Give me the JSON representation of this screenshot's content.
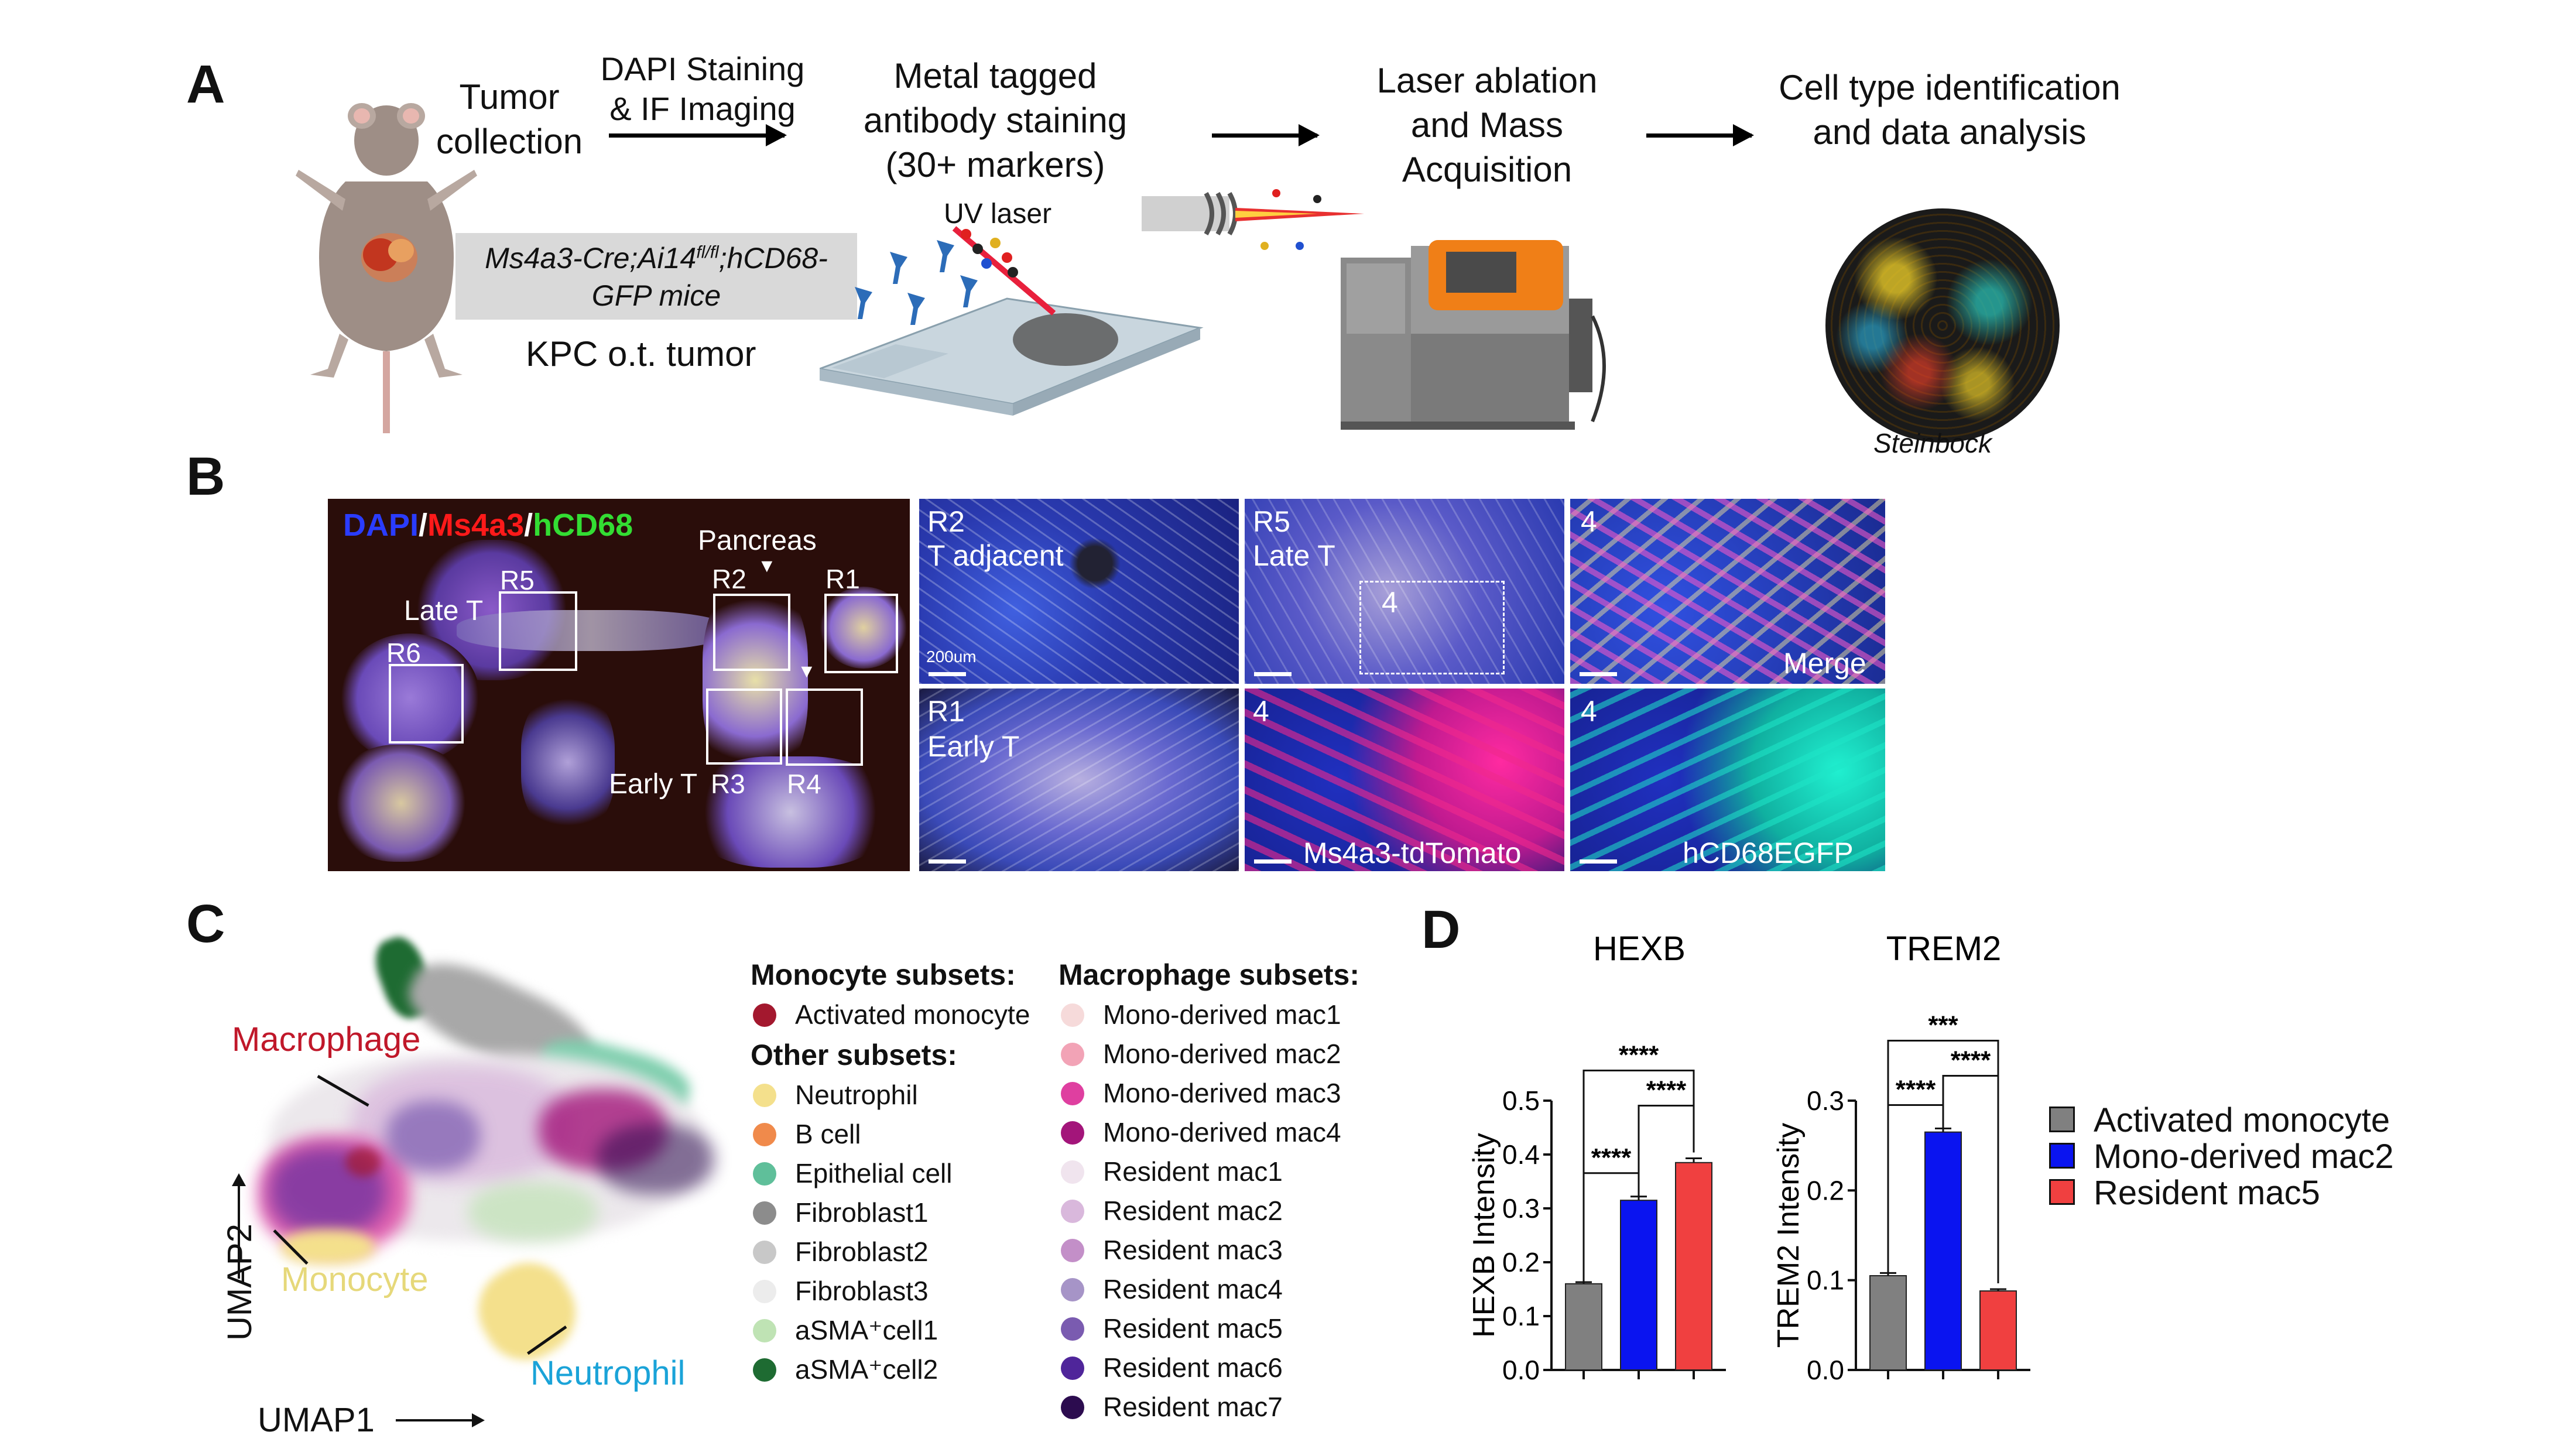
{
  "panelA": {
    "letter": "A",
    "tumor_collection": [
      "Tumor",
      "collection"
    ],
    "dapi_imaging": [
      "DAPI Staining",
      "& IF Imaging"
    ],
    "metal_tagged": [
      "Metal tagged",
      "antibody staining",
      "(30+ markers)"
    ],
    "uv_laser": "UV laser",
    "laser_ablation": [
      "Laser ablation",
      "and Mass",
      "Acquisition"
    ],
    "cell_type": [
      "Cell type identification",
      "and data analysis"
    ],
    "mouse_line_1": "Ms4a3-Cre;Ai14",
    "mouse_line_sup": "fl/fl",
    "mouse_line_2": ";hCD68-",
    "mouse_line_3": "GFP mice",
    "kpc": "KPC o.t. tumor",
    "steinbock": "Steinbock",
    "colors": {
      "tumor": "#c2361f",
      "mouse": "#9e8e86",
      "machine_orange": "#f07f17",
      "machine_gray": "#8a8a8a"
    }
  },
  "panelB": {
    "letter": "B",
    "stain_dapi": "DAPI",
    "stain_sep1": "/",
    "stain_ms4a3": "Ms4a3",
    "stain_sep2": "/",
    "stain_hcd68": "hCD68",
    "pancreas": "Pancreas",
    "late_t": "Late T",
    "early_t": "Early T",
    "regions": [
      "R1",
      "R2",
      "R3",
      "R4",
      "R5",
      "R6"
    ],
    "tile_r2": [
      "R2",
      "T adjacent"
    ],
    "tile_r5": [
      "R5",
      "Late T"
    ],
    "tile_r5_inset": "4",
    "tile_merge_num": "4",
    "tile_merge": "Merge",
    "tile_r1": [
      "R1",
      "Early T"
    ],
    "tile_tomato_num": "4",
    "tile_tomato": "Ms4a3-tdTomato",
    "tile_egfp_num": "4",
    "tile_egfp": "hCD68EGFP",
    "scale_text": "200um",
    "colors": {
      "dapi": "#2a3cff",
      "ms4a3": "#ff1a1a",
      "hcd68": "#33dd33"
    }
  },
  "panelC": {
    "letter": "C",
    "labels": {
      "macrophage": "Macrophage",
      "monocyte": "Monocyte",
      "neutrophil": "Neutrophil"
    },
    "label_colors": {
      "macrophage": "#c0182a",
      "monocyte": "#e6d87a",
      "neutrophil": "#1aa3d8"
    },
    "umap1": "UMAP1",
    "umap2": "UMAP2",
    "legend_left": [
      {
        "type": "title",
        "text": "Monocyte subsets:"
      },
      {
        "type": "item",
        "text": "Activated monocyte",
        "color": "#a3182e"
      },
      {
        "type": "title",
        "text": "Other subsets:"
      },
      {
        "type": "item",
        "text": "Neutrophil",
        "color": "#f4e08c"
      },
      {
        "type": "item",
        "text": "B cell",
        "color": "#f08a4b"
      },
      {
        "type": "item",
        "text": "Epithelial cell",
        "color": "#5fbf9a"
      },
      {
        "type": "item",
        "text": "Fibroblast1",
        "color": "#8c8c8c"
      },
      {
        "type": "item",
        "text": "Fibroblast2",
        "color": "#c8c8c8"
      },
      {
        "type": "item",
        "text": "Fibroblast3",
        "color": "#ececec"
      },
      {
        "type": "item",
        "text": "aSMA⁺cell1",
        "color": "#bfe3b4"
      },
      {
        "type": "item",
        "text": "aSMA⁺cell2",
        "color": "#1e6b32"
      }
    ],
    "legend_right": [
      {
        "type": "title",
        "text": "Macrophage subsets:"
      },
      {
        "type": "item",
        "text": "Mono-derived mac1",
        "color": "#f6dada"
      },
      {
        "type": "item",
        "text": "Mono-derived mac2",
        "color": "#f2a3b6"
      },
      {
        "type": "item",
        "text": "Mono-derived mac3",
        "color": "#df3fa0"
      },
      {
        "type": "item",
        "text": "Mono-derived mac4",
        "color": "#a3157a"
      },
      {
        "type": "item",
        "text": "Resident mac1",
        "color": "#f0e4ee"
      },
      {
        "type": "item",
        "text": "Resident mac2",
        "color": "#d9b8dc"
      },
      {
        "type": "item",
        "text": "Resident mac3",
        "color": "#c38fc8"
      },
      {
        "type": "item",
        "text": "Resident mac4",
        "color": "#a694c7"
      },
      {
        "type": "item",
        "text": "Resident mac5",
        "color": "#7a5bb0"
      },
      {
        "type": "item",
        "text": "Resident mac6",
        "color": "#4f259a"
      },
      {
        "type": "item",
        "text": "Resident mac7",
        "color": "#2c0c4f"
      }
    ]
  },
  "panelD": {
    "letter": "D",
    "legend": [
      {
        "name": "Activated monocyte",
        "color": "#808080"
      },
      {
        "name": "Mono-derived mac2",
        "color": "#0a14f0"
      },
      {
        "name": "Resident mac5",
        "color": "#f04040"
      }
    ]
  },
  "chart_data": [
    {
      "type": "bar",
      "title": "HEXB",
      "ylabel": "HEXB Intensity",
      "ylim": [
        0,
        0.5
      ],
      "yticks": [
        "0.0",
        "0.1",
        "0.2",
        "0.3",
        "0.4",
        "0.5"
      ],
      "categories": [
        "Activated monocyte",
        "Mono-derived mac2",
        "Resident mac5"
      ],
      "values": [
        0.16,
        0.315,
        0.385
      ],
      "errors": [
        0.003,
        0.007,
        0.008
      ],
      "colors": [
        "#808080",
        "#0a14f0",
        "#f04040"
      ],
      "significance": [
        {
          "pair": [
            0,
            1
          ],
          "label": "****"
        },
        {
          "pair": [
            1,
            2
          ],
          "label": "****"
        },
        {
          "pair": [
            0,
            2
          ],
          "label": "****"
        }
      ]
    },
    {
      "type": "bar",
      "title": "TREM2",
      "ylabel": "TREM2 Intensity",
      "ylim": [
        0,
        0.3
      ],
      "yticks": [
        "0.0",
        "0.1",
        "0.2",
        "0.3"
      ],
      "categories": [
        "Activated monocyte",
        "Mono-derived mac2",
        "Resident mac5"
      ],
      "values": [
        0.105,
        0.265,
        0.088
      ],
      "errors": [
        0.003,
        0.004,
        0.002
      ],
      "colors": [
        "#808080",
        "#0a14f0",
        "#f04040"
      ],
      "significance": [
        {
          "pair": [
            0,
            1
          ],
          "label": "****"
        },
        {
          "pair": [
            1,
            2
          ],
          "label": "****"
        },
        {
          "pair": [
            0,
            2
          ],
          "label": "***"
        }
      ]
    }
  ]
}
